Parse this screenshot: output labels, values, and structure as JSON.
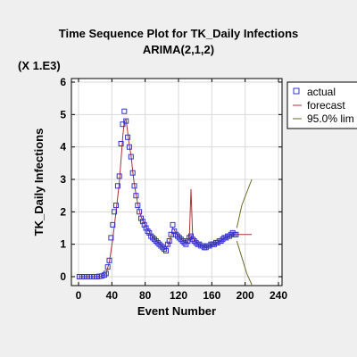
{
  "chart_data": {
    "type": "scatter",
    "title": "Time Sequence Plot for TK_Daily Infections",
    "subtitle": "ARIMA(2,1,2)",
    "multiplier": "(X 1.E3)",
    "xlabel": "Event Number",
    "ylabel": "TK_Daily Infections",
    "xlim": [
      0,
      240
    ],
    "ylim": [
      0,
      6
    ],
    "x_ticks": [
      "0",
      "40",
      "80",
      "120",
      "160",
      "200",
      "240"
    ],
    "y_ticks": [
      "0",
      "1",
      "2",
      "3",
      "4",
      "5",
      "6"
    ],
    "legend": [
      "actual",
      "forecast",
      "95.0% lim"
    ],
    "legend_position": "right",
    "colors": {
      "actual": "#3333cc",
      "forecast": "#aa3333",
      "limits": "#6b6b2a"
    },
    "actual": {
      "x": [
        1,
        4,
        7,
        10,
        13,
        16,
        19,
        22,
        25,
        28,
        31,
        33,
        35,
        37,
        39,
        41,
        43,
        45,
        47,
        49,
        51,
        53,
        55,
        57,
        59,
        61,
        63,
        65,
        67,
        69,
        71,
        73,
        75,
        77,
        79,
        81,
        83,
        85,
        87,
        89,
        91,
        93,
        95,
        97,
        99,
        101,
        103,
        105,
        107,
        109,
        111,
        113,
        115,
        117,
        119,
        121,
        123,
        125,
        127,
        129,
        131,
        133,
        135,
        137,
        139,
        141,
        143,
        145,
        147,
        149,
        151,
        153,
        155,
        157,
        159,
        161,
        163,
        165,
        167,
        169,
        171,
        173,
        175,
        177,
        179,
        181,
        183,
        185,
        187,
        189
      ],
      "y": [
        0,
        0,
        0,
        0,
        0,
        0,
        0,
        0,
        0.01,
        0.02,
        0.05,
        0.1,
        0.3,
        0.5,
        1.2,
        1.6,
        2.0,
        2.2,
        2.8,
        3.1,
        4.1,
        4.7,
        5.1,
        4.8,
        4.3,
        4.0,
        3.7,
        3.2,
        2.8,
        2.5,
        2.2,
        2.0,
        1.8,
        1.7,
        1.6,
        1.5,
        1.4,
        1.35,
        1.25,
        1.2,
        1.15,
        1.1,
        1.05,
        1.0,
        0.95,
        0.9,
        0.85,
        0.8,
        1.0,
        1.1,
        1.3,
        1.6,
        1.4,
        1.3,
        1.25,
        1.2,
        1.15,
        1.1,
        1.05,
        1.0,
        1.1,
        1.2,
        1.25,
        1.15,
        1.1,
        1.05,
        1.0,
        1.0,
        0.95,
        0.95,
        0.9,
        0.9,
        0.95,
        0.95,
        1.0,
        1.0,
        1.0,
        1.05,
        1.05,
        1.1,
        1.1,
        1.15,
        1.2,
        1.2,
        1.25,
        1.25,
        1.3,
        1.35,
        1.3,
        1.3
      ]
    },
    "forecast": {
      "x": [
        1,
        10,
        20,
        28,
        33,
        37,
        41,
        45,
        49,
        53,
        55,
        57,
        59,
        61,
        63,
        65,
        67,
        69,
        71,
        73,
        75,
        77,
        79,
        81,
        83,
        85,
        87,
        89,
        91,
        93,
        95,
        97,
        99,
        101,
        103,
        105,
        107,
        109,
        111,
        113,
        115,
        117,
        119,
        121,
        123,
        125,
        127,
        129,
        131,
        133,
        135,
        137,
        139,
        141,
        143,
        145,
        147,
        149,
        151,
        153,
        155,
        157,
        159,
        161,
        163,
        165,
        167,
        169,
        171,
        173,
        175,
        177,
        179,
        181,
        183,
        185,
        187,
        189,
        192,
        196,
        200,
        204,
        208
      ],
      "y": [
        0,
        0,
        0,
        0.02,
        0.09,
        0.45,
        1.15,
        2.0,
        2.9,
        4.3,
        4.8,
        4.85,
        4.45,
        4.05,
        3.75,
        3.25,
        2.85,
        2.55,
        2.25,
        2.05,
        1.85,
        1.75,
        1.65,
        1.55,
        1.45,
        1.38,
        1.28,
        1.22,
        1.17,
        1.12,
        1.07,
        1.02,
        0.97,
        0.92,
        0.87,
        0.85,
        0.95,
        1.05,
        1.25,
        1.5,
        1.45,
        1.33,
        1.27,
        1.22,
        1.17,
        1.12,
        1.07,
        1.03,
        1.08,
        1.17,
        2.7,
        1.2,
        1.12,
        1.07,
        1.02,
        1.0,
        0.97,
        0.95,
        0.92,
        0.9,
        0.92,
        0.94,
        0.98,
        1.0,
        1.0,
        1.03,
        1.05,
        1.08,
        1.1,
        1.13,
        1.18,
        1.2,
        1.23,
        1.25,
        1.28,
        1.33,
        1.3,
        1.3,
        1.3,
        1.3,
        1.3,
        1.3,
        1.3
      ]
    },
    "upper_limit": {
      "x": [
        190,
        196,
        202,
        208
      ],
      "y": [
        1.5,
        2.2,
        2.6,
        3.0
      ]
    },
    "lower_limit": {
      "x": [
        190,
        196,
        202,
        208
      ],
      "y": [
        1.1,
        0.6,
        0.1,
        -0.4
      ]
    }
  }
}
